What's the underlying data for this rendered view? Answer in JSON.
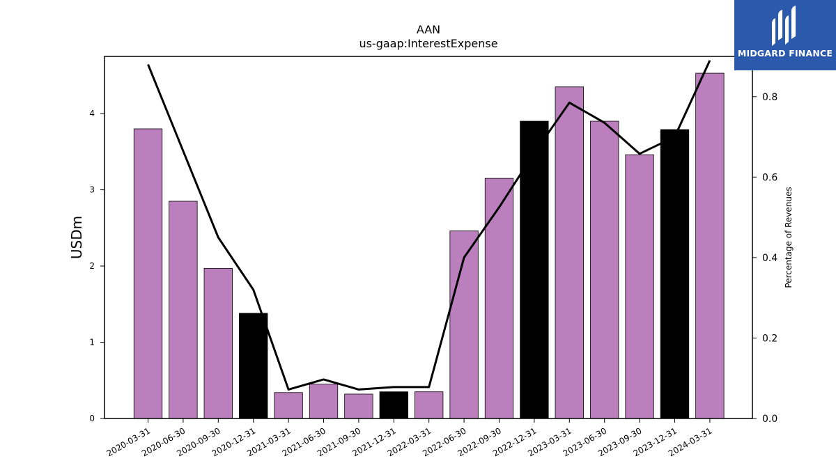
{
  "logo": {
    "name": "MIDGARD FINANCE",
    "color": "#2b5aad"
  },
  "chart_data": {
    "type": "bar",
    "title": "AAN",
    "subtitle": "us-gaap:InterestExpense",
    "ylabel": "USDm",
    "y2label": "Percentage of Revenues",
    "categories": [
      "2020-03-31",
      "2020-06-30",
      "2020-09-30",
      "2020-12-31",
      "2021-03-31",
      "2021-06-30",
      "2021-09-30",
      "2021-12-31",
      "2022-03-31",
      "2022-06-30",
      "2022-09-30",
      "2022-12-31",
      "2023-03-31",
      "2023-06-30",
      "2023-09-30",
      "2023-12-31",
      "2024-03-31"
    ],
    "series": [
      {
        "type": "bar",
        "values": [
          3.8,
          2.85,
          1.97,
          1.38,
          0.34,
          0.45,
          0.32,
          0.35,
          0.35,
          2.46,
          3.15,
          3.9,
          4.35,
          3.9,
          3.46,
          3.79,
          4.53
        ]
      },
      {
        "type": "line",
        "axis": "right",
        "values": [
          0.88,
          0.665,
          0.45,
          0.32,
          0.072,
          0.097,
          0.072,
          0.078,
          0.078,
          0.4,
          0.525,
          0.66,
          0.785,
          0.735,
          0.658,
          0.7,
          0.89
        ]
      }
    ],
    "bar_colors": [
      "#bb7fbd",
      "#bb7fbd",
      "#bb7fbd",
      "#000000",
      "#bb7fbd",
      "#bb7fbd",
      "#bb7fbd",
      "#000000",
      "#bb7fbd",
      "#bb7fbd",
      "#bb7fbd",
      "#000000",
      "#bb7fbd",
      "#bb7fbd",
      "#bb7fbd",
      "#000000",
      "#bb7fbd"
    ],
    "line_color": "#000000",
    "ylim": [
      0,
      4.75
    ],
    "yticks": [
      0,
      1,
      2,
      3,
      4
    ],
    "y2lim": [
      0,
      0.9
    ],
    "y2ticks": [
      "0.0",
      "0.2",
      "0.4",
      "0.6",
      "0.8"
    ],
    "grid": false
  }
}
